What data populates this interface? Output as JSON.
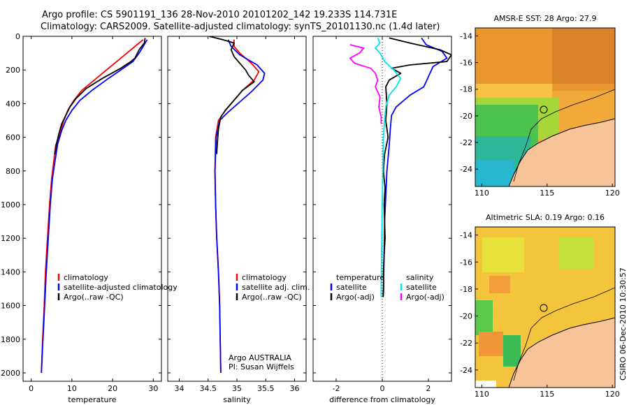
{
  "header": {
    "line1": "Argo profile: CS 5901191_136 28-Nov-2010 20101202_142 19.233S 114.731E",
    "line2": "Climatology: CARS2009. Satellite-adjusted climatology: synTS_20101130.nc (1.4d later)"
  },
  "credit": "CSIRO 06-Dec-2010 10:30:57",
  "colors": {
    "climatology": "#ff0000",
    "satellite": "#0000ff",
    "argo": "#000000",
    "sat_salinity": "#00e5e5",
    "argo_salinity": "#ff00ff",
    "land": "#f7c49a"
  },
  "chart_data": [
    {
      "type": "line",
      "id": "temperature",
      "xlabel": "temperature",
      "xlim": [
        -2,
        32
      ],
      "ylim": [
        2050,
        0
      ],
      "xticks": [
        0,
        10,
        20,
        30
      ],
      "yticks": [
        0,
        200,
        400,
        600,
        800,
        1000,
        1200,
        1400,
        1600,
        1800,
        2000
      ],
      "legend": [
        "climatology",
        "satellite-adjusted climatology",
        "Argo(..raw -QC)"
      ],
      "series": [
        {
          "name": "climatology",
          "color": "#ff0000",
          "points": [
            [
              27.5,
              20
            ],
            [
              26,
              50
            ],
            [
              24,
              90
            ],
            [
              22,
              130
            ],
            [
              20,
              170
            ],
            [
              18,
              210
            ],
            [
              15.5,
              260
            ],
            [
              12.5,
              320
            ],
            [
              10.5,
              380
            ],
            [
              9,
              440
            ],
            [
              8,
              500
            ],
            [
              7,
              580
            ],
            [
              6,
              650
            ],
            [
              5.5,
              750
            ],
            [
              5,
              850
            ],
            [
              4.5,
              1000
            ],
            [
              4,
              1200
            ],
            [
              3.5,
              1400
            ],
            [
              3.2,
              1600
            ],
            [
              2.8,
              1800
            ],
            [
              2.5,
              2000
            ]
          ]
        },
        {
          "name": "satellite-adjusted climatology",
          "color": "#0000ff",
          "points": [
            [
              28.5,
              20
            ],
            [
              27.5,
              60
            ],
            [
              26.5,
              100
            ],
            [
              25,
              150
            ],
            [
              22,
              200
            ],
            [
              19,
              250
            ],
            [
              15,
              320
            ],
            [
              12,
              380
            ],
            [
              10,
              440
            ],
            [
              8.5,
              500
            ],
            [
              7.5,
              560
            ],
            [
              6.5,
              640
            ],
            [
              5.8,
              750
            ],
            [
              5.2,
              850
            ],
            [
              4.7,
              1000
            ],
            [
              4.2,
              1200
            ],
            [
              3.7,
              1400
            ],
            [
              3.3,
              1600
            ],
            [
              2.9,
              1800
            ],
            [
              2.5,
              2000
            ]
          ]
        },
        {
          "name": "Argo(..raw -QC)",
          "color": "#000000",
          "points": [
            [
              28,
              10
            ],
            [
              27.8,
              40
            ],
            [
              26.5,
              80
            ],
            [
              25.5,
              130
            ],
            [
              24.5,
              150
            ],
            [
              22,
              190
            ],
            [
              17.5,
              250
            ],
            [
              13.5,
              310
            ],
            [
              11,
              370
            ],
            [
              9.5,
              420
            ],
            [
              8.5,
              470
            ],
            [
              7.5,
              520
            ],
            [
              6.8,
              580
            ],
            [
              6.2,
              640
            ],
            [
              5.8,
              700
            ]
          ]
        }
      ]
    },
    {
      "type": "line",
      "id": "salinity",
      "xlabel": "salinity",
      "xlim": [
        33.8,
        36.2
      ],
      "ylim": [
        2050,
        0
      ],
      "xticks": [
        34,
        34.5,
        35,
        35.5,
        36
      ],
      "legend": [
        "climatology",
        "satellite adj. clim.",
        "Argo(..raw -QC)"
      ],
      "annotation": [
        "Argo AUSTRALIA",
        "PI: Susan Wijffels"
      ],
      "series": [
        {
          "name": "climatology",
          "color": "#ff0000",
          "points": [
            [
              34.95,
              20
            ],
            [
              34.95,
              60
            ],
            [
              35.05,
              100
            ],
            [
              35.25,
              160
            ],
            [
              35.38,
              210
            ],
            [
              35.3,
              260
            ],
            [
              35.1,
              320
            ],
            [
              34.95,
              380
            ],
            [
              34.8,
              440
            ],
            [
              34.68,
              500
            ],
            [
              34.63,
              600
            ],
            [
              34.62,
              800
            ],
            [
              34.63,
              1000
            ],
            [
              34.65,
              1200
            ],
            [
              34.68,
              1400
            ],
            [
              34.7,
              1600
            ],
            [
              34.71,
              1800
            ],
            [
              34.72,
              2000
            ]
          ]
        },
        {
          "name": "satellite adj. clim.",
          "color": "#0000ff",
          "points": [
            [
              34.85,
              20
            ],
            [
              34.9,
              60
            ],
            [
              35.05,
              110
            ],
            [
              35.35,
              170
            ],
            [
              35.48,
              220
            ],
            [
              35.45,
              260
            ],
            [
              35.25,
              330
            ],
            [
              35.05,
              390
            ],
            [
              34.85,
              450
            ],
            [
              34.7,
              500
            ],
            [
              34.64,
              600
            ],
            [
              34.62,
              800
            ],
            [
              34.63,
              1000
            ],
            [
              34.65,
              1200
            ],
            [
              34.68,
              1400
            ],
            [
              34.7,
              1600
            ],
            [
              34.71,
              1800
            ],
            [
              34.72,
              2000
            ]
          ]
        },
        {
          "name": "Argo(..raw -QC)",
          "color": "#000000",
          "points": [
            [
              34.52,
              0
            ],
            [
              34.75,
              20
            ],
            [
              34.95,
              40
            ],
            [
              34.9,
              80
            ],
            [
              34.95,
              120
            ],
            [
              35.05,
              160
            ],
            [
              35.15,
              200
            ],
            [
              35.2,
              230
            ],
            [
              35.3,
              270
            ],
            [
              35.1,
              320
            ],
            [
              34.95,
              380
            ],
            [
              34.8,
              440
            ],
            [
              34.72,
              480
            ],
            [
              34.68,
              550
            ],
            [
              34.66,
              640
            ],
            [
              34.65,
              700
            ]
          ]
        }
      ]
    },
    {
      "type": "line",
      "id": "difference",
      "xlabel": "difference from climatology",
      "xlim": [
        -3,
        3
      ],
      "ylim": [
        2050,
        0
      ],
      "xticks": [
        -2,
        0,
        2
      ],
      "legend_left": [
        "temperature",
        "satellite",
        "Argo(-adj)"
      ],
      "legend_right": [
        "salinity",
        "satellite",
        "Argo(-adj)"
      ],
      "series": [
        {
          "name": "temperature satellite",
          "color": "#0000ff",
          "points": [
            [
              1.7,
              10
            ],
            [
              1.9,
              50
            ],
            [
              2.6,
              90
            ],
            [
              2.8,
              130
            ],
            [
              2.2,
              180
            ],
            [
              2,
              240
            ],
            [
              1.8,
              300
            ],
            [
              1.2,
              350
            ],
            [
              0.6,
              420
            ],
            [
              0.4,
              470
            ],
            [
              0.35,
              550
            ],
            [
              0.3,
              650
            ],
            [
              0.2,
              800
            ],
            [
              0.15,
              950
            ],
            [
              0.1,
              1100
            ],
            [
              0.08,
              1300
            ],
            [
              0.05,
              1500
            ],
            [
              0.03,
              1550
            ]
          ]
        },
        {
          "name": "temperature Argo(-adj)",
          "color": "#000000",
          "points": [
            [
              0.3,
              10
            ],
            [
              1.2,
              40
            ],
            [
              2.5,
              80
            ],
            [
              3,
              110
            ],
            [
              2.8,
              150
            ],
            [
              1.2,
              170
            ],
            [
              0.4,
              190
            ],
            [
              0.8,
              220
            ],
            [
              0.3,
              260
            ],
            [
              0.15,
              300
            ],
            [
              0.2,
              400
            ],
            [
              0.15,
              500
            ],
            [
              0.25,
              600
            ],
            [
              0.1,
              700
            ],
            [
              0.05,
              800
            ],
            [
              0.12,
              900
            ],
            [
              0.08,
              1000
            ],
            [
              0.1,
              1100
            ],
            [
              0.12,
              1200
            ],
            [
              0.08,
              1300
            ],
            [
              0.05,
              1400
            ],
            [
              0.06,
              1500
            ],
            [
              0.04,
              1550
            ]
          ]
        },
        {
          "name": "salinity satellite",
          "color": "#00e5e5",
          "points": [
            [
              -0.2,
              10
            ],
            [
              -0.1,
              40
            ],
            [
              -0.3,
              70
            ],
            [
              -0.1,
              100
            ],
            [
              0.1,
              150
            ],
            [
              0.5,
              200
            ],
            [
              0.8,
              250
            ],
            [
              0.6,
              300
            ],
            [
              0.3,
              350
            ],
            [
              0.15,
              420
            ],
            [
              0.1,
              500
            ],
            [
              0.05,
              600
            ],
            [
              0.02,
              800
            ],
            [
              0,
              1000
            ],
            [
              -0.02,
              1200
            ],
            [
              -0.04,
              1400
            ],
            [
              -0.05,
              1550
            ]
          ]
        },
        {
          "name": "salinity Argo(-adj)",
          "color": "#ff00ff",
          "points": [
            [
              -1.4,
              50
            ],
            [
              -0.8,
              70
            ],
            [
              -1,
              100
            ],
            [
              -1.4,
              130
            ],
            [
              -1.2,
              160
            ],
            [
              -0.5,
              190
            ],
            [
              -0.3,
              220
            ],
            [
              -0.2,
              260
            ],
            [
              -0.3,
              300
            ],
            [
              -0.1,
              360
            ],
            [
              -0.15,
              420
            ],
            [
              -0.05,
              480
            ],
            [
              -0.05,
              520
            ]
          ]
        }
      ]
    },
    {
      "type": "heatmap",
      "id": "sst-map",
      "title": "AMSR-E SST: 28 Argo: 27.9",
      "xlim": [
        109.5,
        120.2
      ],
      "ylim": [
        -25.3,
        -13.4
      ],
      "xticks": [
        110,
        115,
        120
      ],
      "yticks": [
        -14,
        -16,
        -18,
        -20,
        -22,
        -24
      ],
      "marker": [
        114.731,
        -19.233
      ]
    },
    {
      "type": "heatmap",
      "id": "sla-map",
      "title": "Altimetric SLA: 0.19 Argo: 0.16",
      "xlim": [
        109.5,
        120.2
      ],
      "ylim": [
        -25.3,
        -13.4
      ],
      "xticks": [
        110,
        115,
        120
      ],
      "yticks": [
        -14,
        -16,
        -18,
        -20,
        -22,
        -24
      ],
      "marker": [
        114.731,
        -19.233
      ]
    }
  ]
}
